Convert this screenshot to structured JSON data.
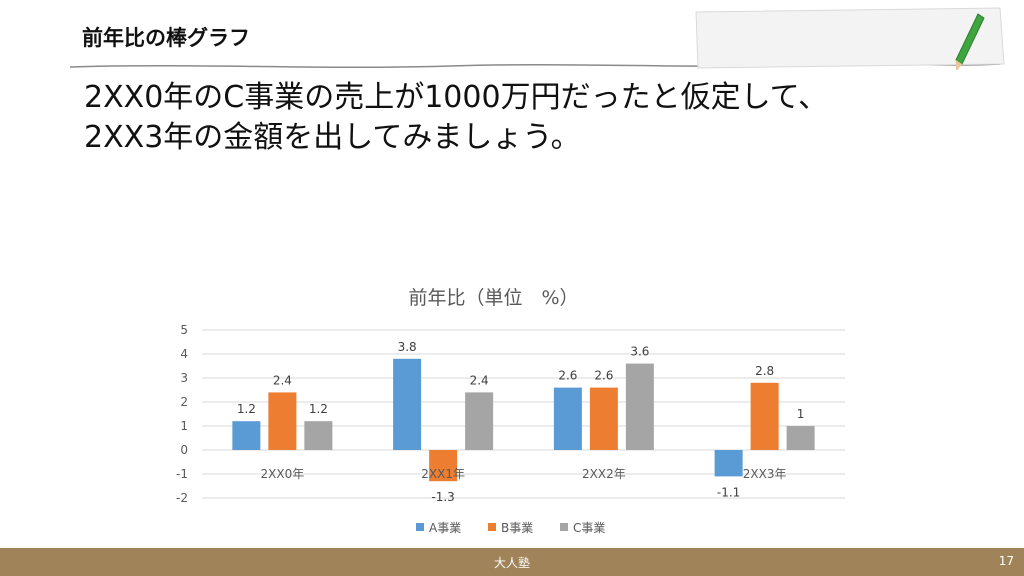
{
  "slide": {
    "section_title": "前年比の棒グラフ",
    "headline_line1": "2XX0年のC事業の売上が1000万円だったと仮定して、",
    "headline_line2": "2XX3年の金額を出してみましょう。"
  },
  "footer": {
    "brand": "大人塾",
    "page_number": "17",
    "color": "#a08358"
  },
  "chart_data": {
    "type": "bar",
    "title": "前年比（単位　%）",
    "xlabel": "",
    "ylabel": "",
    "categories": [
      "2XX0年",
      "2XX1年",
      "2XX2年",
      "2XX3年"
    ],
    "series": [
      {
        "name": "A事業",
        "color": "#5b9bd5",
        "values": [
          1.2,
          3.8,
          2.6,
          -1.1
        ]
      },
      {
        "name": "B事業",
        "color": "#ed7d31",
        "values": [
          2.4,
          -1.3,
          2.6,
          2.8
        ]
      },
      {
        "name": "C事業",
        "color": "#a5a5a5",
        "values": [
          1.2,
          2.4,
          3.6,
          1
        ]
      }
    ],
    "ylim": [
      -2,
      5
    ],
    "yticks": [
      "5",
      "4",
      "3",
      "2",
      "1",
      "0",
      "-1",
      "-2"
    ],
    "grid": true,
    "legend": "bottom",
    "data_labels": true
  }
}
